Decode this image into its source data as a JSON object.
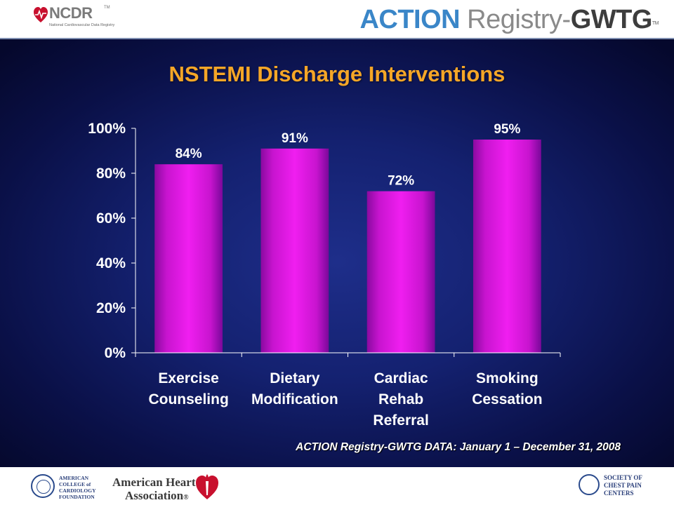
{
  "header": {
    "ncdr": {
      "name": "NCDR",
      "trademark": "TM",
      "subtitle": "National Cardiovascular Data Registry"
    },
    "action_logo": {
      "action": "ACTION",
      "registry": " Registry",
      "separator": "-",
      "gwtg": "GWTG",
      "trademark": "TM"
    }
  },
  "colors": {
    "title": "#f5a627",
    "bar": "#e619e6",
    "background": "#142170",
    "axis_text": "#ffffff"
  },
  "chart_data": {
    "type": "bar",
    "title": "NSTEMI Discharge Interventions",
    "categories": [
      [
        "Exercise",
        "Counseling"
      ],
      [
        "Dietary",
        "Modification"
      ],
      [
        "Cardiac",
        "Rehab",
        "Referral"
      ],
      [
        "Smoking",
        "Cessation"
      ]
    ],
    "values": [
      84,
      91,
      72,
      95
    ],
    "value_labels": [
      "84%",
      "91%",
      "72%",
      "95%"
    ],
    "ylim": [
      0,
      100
    ],
    "yticks": [
      0,
      20,
      40,
      60,
      80,
      100
    ],
    "ytick_labels": [
      "0%",
      "20%",
      "40%",
      "60%",
      "80%",
      "100%"
    ],
    "xlabel": "",
    "ylabel": "",
    "grid": false,
    "legend": "none"
  },
  "footnote": "ACTION Registry-GWTG DATA: January 1 – December 31, 2008",
  "footer": {
    "acc": "AMERICAN\nCOLLEGE of\nCARDIOLOGY\nFOUNDATION",
    "aha_line1": "American Heart",
    "aha_line2": "Association",
    "aha_registered": "®",
    "scpc": "SOCIETY OF\nCHEST PAIN\nCENTERS"
  }
}
